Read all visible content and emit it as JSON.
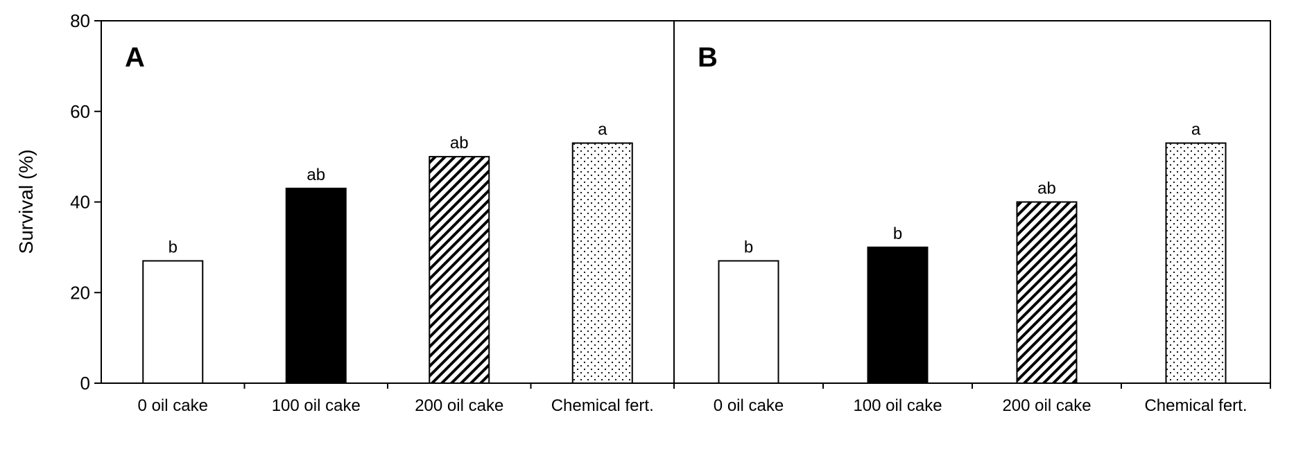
{
  "chart_data": {
    "type": "bar",
    "ylabel": "Survival (%)",
    "ylim": [
      0,
      80
    ],
    "yticks": [
      0,
      20,
      40,
      60,
      80
    ],
    "grid": false,
    "legend": "none",
    "categories": [
      "0 oil cake",
      "100 oil cake",
      "200 oil cake",
      "Chemical fert."
    ],
    "bar_styles": [
      "white",
      "solid-black",
      "diagonal-hatch",
      "dotted"
    ],
    "panels": [
      {
        "letter": "A",
        "values": [
          27,
          43,
          50,
          53
        ],
        "labels": [
          "b",
          "ab",
          "ab",
          "a"
        ]
      },
      {
        "letter": "B",
        "values": [
          27,
          30,
          40,
          53
        ],
        "labels": [
          "b",
          "b",
          "ab",
          "a"
        ]
      }
    ]
  },
  "colors": {
    "axis": "#000000",
    "bar_fill": "#ffffff",
    "bar_solid": "#000000"
  }
}
